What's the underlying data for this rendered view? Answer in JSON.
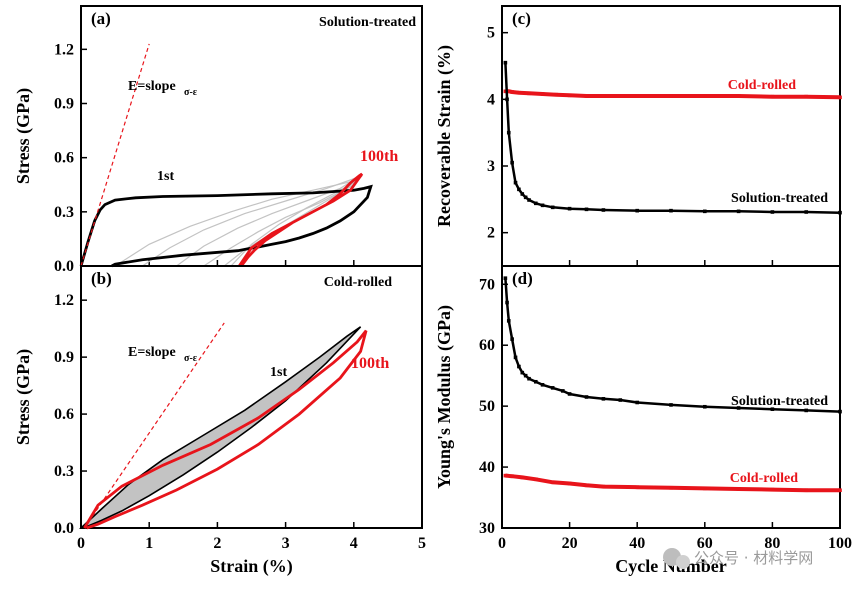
{
  "colors": {
    "black": "#000000",
    "red": "#e8141b",
    "gray": "#c3c3c3",
    "axis": "#000000"
  },
  "watermark": {
    "icon_name": "wechat-icon",
    "text": "公众号 · 材料学网"
  },
  "chart_data": [
    {
      "panel": "(a)",
      "type": "line",
      "annotation_title": "Solution-treated",
      "xlabel": "",
      "ylabel": "Stress (GPa)",
      "xlim": [
        0,
        5
      ],
      "ylim": [
        0,
        1.44
      ],
      "yticks": [
        "0.0",
        "0.3",
        "0.6",
        "0.9",
        "1.2"
      ],
      "slope_label": "E=slope",
      "slope_subscript": "σ-ε",
      "slope_line": {
        "x": [
          0.0,
          1.0
        ],
        "y": [
          0.0,
          1.23
        ]
      },
      "label_first": "1st",
      "label_last": "100th",
      "series": [
        {
          "role": "first-cycle",
          "color": "black",
          "x": [
            0.0,
            0.1,
            0.2,
            0.28,
            0.35,
            0.5,
            0.8,
            1.2,
            2.0,
            2.8,
            3.4,
            3.6,
            3.8,
            4.0,
            4.15,
            4.25,
            4.2,
            4.0,
            3.8,
            3.6,
            3.4,
            3.2,
            3.0,
            2.8,
            2.6,
            2.45,
            2.3,
            1.5,
            0.9,
            0.5,
            0.45
          ],
          "y": [
            0.0,
            0.13,
            0.25,
            0.31,
            0.34,
            0.365,
            0.378,
            0.385,
            0.39,
            0.4,
            0.405,
            0.41,
            0.415,
            0.42,
            0.43,
            0.44,
            0.38,
            0.3,
            0.25,
            0.21,
            0.18,
            0.155,
            0.135,
            0.12,
            0.105,
            0.095,
            0.085,
            0.06,
            0.035,
            0.01,
            0.0
          ]
        },
        {
          "role": "hundredth-cycle",
          "color": "red",
          "x": [
            2.32,
            2.5,
            2.8,
            3.1,
            3.4,
            3.6,
            3.8,
            3.95,
            4.08,
            4.12,
            3.95,
            3.7,
            3.5,
            3.3,
            3.1,
            2.9,
            2.7,
            2.55,
            2.45,
            2.35
          ],
          "y": [
            0.0,
            0.1,
            0.18,
            0.24,
            0.3,
            0.34,
            0.4,
            0.46,
            0.5,
            0.51,
            0.42,
            0.36,
            0.32,
            0.28,
            0.24,
            0.19,
            0.14,
            0.09,
            0.05,
            0.0
          ]
        },
        {
          "role": "intermediate-cycles",
          "color": "gray",
          "loops": [
            {
              "x": [
                0.9,
                1.3,
                1.8,
                2.4,
                3.0,
                3.6,
                4.05
              ],
              "y": [
                0.0,
                0.1,
                0.2,
                0.29,
                0.36,
                0.43,
                0.49
              ]
            },
            {
              "x": [
                1.4,
                1.8,
                2.3,
                2.8,
                3.3,
                3.8,
                4.1
              ],
              "y": [
                0.0,
                0.11,
                0.21,
                0.29,
                0.36,
                0.43,
                0.5
              ]
            },
            {
              "x": [
                1.8,
                2.2,
                2.6,
                3.0,
                3.5,
                3.9,
                4.12
              ],
              "y": [
                0.0,
                0.1,
                0.19,
                0.27,
                0.35,
                0.43,
                0.5
              ]
            },
            {
              "x": [
                2.1,
                2.4,
                2.8,
                3.2,
                3.6,
                4.0,
                4.12
              ],
              "y": [
                0.0,
                0.09,
                0.18,
                0.27,
                0.36,
                0.45,
                0.5
              ]
            },
            {
              "x": [
                0.5,
                1.0,
                1.6,
                2.2,
                2.8,
                3.4,
                4.0
              ],
              "y": [
                0.0,
                0.12,
                0.22,
                0.3,
                0.37,
                0.42,
                0.47
              ]
            },
            {
              "x": [
                2.2,
                2.5,
                2.9,
                3.3,
                3.7,
                4.0,
                4.1
              ],
              "y": [
                0.0,
                0.12,
                0.23,
                0.32,
                0.4,
                0.46,
                0.5
              ]
            }
          ]
        }
      ]
    },
    {
      "panel": "(b)",
      "type": "line",
      "annotation_title": "Cold-rolled",
      "xlabel": "Strain (%)",
      "ylabel": "Stress (GPa)",
      "xlim": [
        0,
        5
      ],
      "ylim": [
        0,
        1.38
      ],
      "xticks": [
        "0",
        "1",
        "2",
        "3",
        "4",
        "5"
      ],
      "yticks": [
        "0.0",
        "0.3",
        "0.6",
        "0.9",
        "1.2"
      ],
      "slope_label": "E=slope",
      "slope_subscript": "σ-ε",
      "slope_line": {
        "x": [
          0.05,
          2.1
        ],
        "y": [
          0.0,
          1.08
        ]
      },
      "label_first": "1st",
      "label_last": "100th",
      "series": [
        {
          "role": "first-cycle",
          "color": "black",
          "x": [
            0.0,
            0.3,
            0.7,
            1.2,
            1.8,
            2.4,
            3.0,
            3.5,
            3.9,
            4.1,
            3.6,
            3.0,
            2.5,
            2.0,
            1.5,
            1.0,
            0.6,
            0.3,
            0.1,
            0.02
          ],
          "y": [
            0.0,
            0.1,
            0.23,
            0.36,
            0.49,
            0.62,
            0.77,
            0.9,
            1.01,
            1.06,
            0.87,
            0.67,
            0.53,
            0.4,
            0.28,
            0.17,
            0.09,
            0.04,
            0.01,
            0.0
          ]
        },
        {
          "role": "hundredth-cycle",
          "color": "red",
          "x": [
            0.05,
            0.25,
            0.6,
            1.2,
            1.9,
            2.6,
            3.2,
            3.7,
            4.05,
            4.18,
            4.1,
            3.8,
            3.2,
            2.6,
            2.0,
            1.4,
            0.9,
            0.5,
            0.25,
            0.08
          ],
          "y": [
            0.0,
            0.12,
            0.22,
            0.33,
            0.44,
            0.58,
            0.73,
            0.87,
            0.98,
            1.04,
            0.93,
            0.79,
            0.6,
            0.44,
            0.31,
            0.2,
            0.12,
            0.06,
            0.02,
            0.0
          ]
        }
      ]
    },
    {
      "panel": "(c)",
      "type": "line",
      "xlabel": "",
      "ylabel": "Recoverable Strain (%)",
      "xlim": [
        0,
        100
      ],
      "ylim": [
        1.5,
        5.4
      ],
      "yticks": [
        "2",
        "3",
        "4",
        "5"
      ],
      "series": [
        {
          "name": "Cold-rolled",
          "color": "red",
          "x": [
            1,
            2,
            3,
            5,
            8,
            12,
            16,
            20,
            25,
            30,
            40,
            50,
            60,
            70,
            80,
            90,
            100
          ],
          "y": [
            4.12,
            4.12,
            4.11,
            4.1,
            4.09,
            4.08,
            4.07,
            4.06,
            4.05,
            4.05,
            4.05,
            4.05,
            4.05,
            4.05,
            4.04,
            4.04,
            4.03
          ]
        },
        {
          "name": "Solution-treated",
          "color": "black",
          "x": [
            1,
            1.5,
            2,
            3,
            4,
            5,
            6,
            7,
            8,
            10,
            12,
            15,
            20,
            25,
            30,
            40,
            50,
            60,
            70,
            80,
            90,
            100
          ],
          "y": [
            4.55,
            4.0,
            3.5,
            3.05,
            2.75,
            2.65,
            2.58,
            2.53,
            2.49,
            2.44,
            2.41,
            2.38,
            2.36,
            2.35,
            2.34,
            2.33,
            2.33,
            2.32,
            2.32,
            2.31,
            2.31,
            2.3
          ]
        }
      ]
    },
    {
      "panel": "(d)",
      "type": "line",
      "xlabel": "Cycle Number",
      "ylabel": "Young's Modulus (GPa)",
      "xlim": [
        0,
        100
      ],
      "ylim": [
        30,
        73
      ],
      "xticks": [
        "0",
        "20",
        "40",
        "60",
        "80",
        "100"
      ],
      "yticks": [
        "30",
        "40",
        "50",
        "60",
        "70"
      ],
      "series": [
        {
          "name": "Solution-treated",
          "color": "black",
          "x": [
            1,
            1.5,
            2,
            3,
            4,
            5,
            6,
            7,
            8,
            10,
            12,
            15,
            18,
            20,
            25,
            30,
            35,
            40,
            50,
            60,
            70,
            80,
            90,
            100
          ],
          "y": [
            71,
            67,
            64,
            61,
            58,
            56.5,
            55.5,
            55,
            54.5,
            54,
            53.5,
            53,
            52.5,
            52,
            51.5,
            51.2,
            51,
            50.6,
            50.2,
            49.9,
            49.7,
            49.5,
            49.3,
            49.1
          ]
        },
        {
          "name": "Cold-rolled",
          "color": "red",
          "x": [
            1,
            3,
            6,
            10,
            15,
            20,
            25,
            30,
            40,
            50,
            60,
            70,
            80,
            90,
            100
          ],
          "y": [
            38.6,
            38.5,
            38.3,
            38.0,
            37.5,
            37.3,
            37.0,
            36.8,
            36.7,
            36.6,
            36.5,
            36.4,
            36.3,
            36.2,
            36.2
          ]
        }
      ]
    }
  ]
}
